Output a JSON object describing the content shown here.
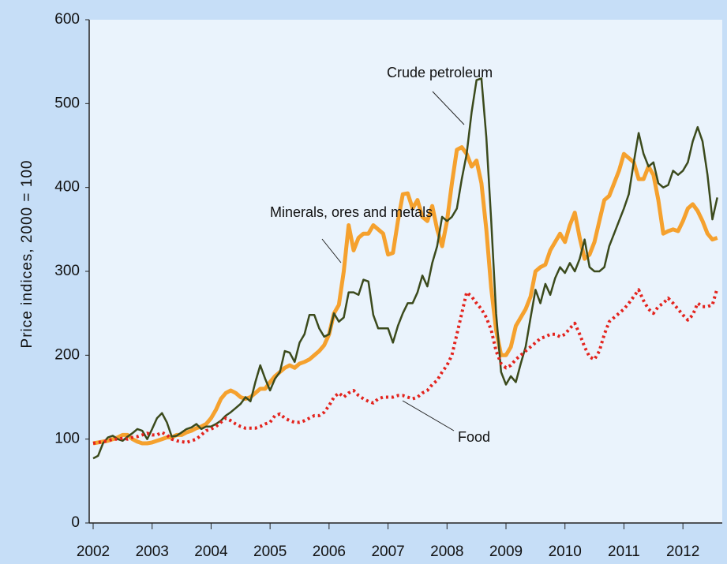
{
  "chart_data": {
    "type": "line",
    "y_label": "Price indices, 2000 = 100",
    "x": [
      2002,
      2002.083,
      2002.167,
      2002.25,
      2002.333,
      2002.417,
      2002.5,
      2002.583,
      2002.667,
      2002.75,
      2002.833,
      2002.917,
      2003,
      2003.083,
      2003.167,
      2003.25,
      2003.333,
      2003.417,
      2003.5,
      2003.583,
      2003.667,
      2003.75,
      2003.833,
      2003.917,
      2004,
      2004.083,
      2004.167,
      2004.25,
      2004.333,
      2004.417,
      2004.5,
      2004.583,
      2004.667,
      2004.75,
      2004.833,
      2004.917,
      2005,
      2005.083,
      2005.167,
      2005.25,
      2005.333,
      2005.417,
      2005.5,
      2005.583,
      2005.667,
      2005.75,
      2005.833,
      2005.917,
      2006,
      2006.083,
      2006.167,
      2006.25,
      2006.333,
      2006.417,
      2006.5,
      2006.583,
      2006.667,
      2006.75,
      2006.833,
      2006.917,
      2007,
      2007.083,
      2007.167,
      2007.25,
      2007.333,
      2007.417,
      2007.5,
      2007.583,
      2007.667,
      2007.75,
      2007.833,
      2007.917,
      2008,
      2008.083,
      2008.167,
      2008.25,
      2008.333,
      2008.417,
      2008.5,
      2008.583,
      2008.667,
      2008.75,
      2008.833,
      2008.917,
      2009,
      2009.083,
      2009.167,
      2009.25,
      2009.333,
      2009.417,
      2009.5,
      2009.583,
      2009.667,
      2009.75,
      2009.833,
      2009.917,
      2010,
      2010.083,
      2010.167,
      2010.25,
      2010.333,
      2010.417,
      2010.5,
      2010.583,
      2010.667,
      2010.75,
      2010.833,
      2010.917,
      2011,
      2011.083,
      2011.167,
      2011.25,
      2011.333,
      2011.417,
      2011.5,
      2011.583,
      2011.667,
      2011.75,
      2011.833,
      2011.917,
      2012,
      2012.083,
      2012.167,
      2012.25,
      2012.333,
      2012.417,
      2012.5,
      2012.583
    ],
    "series": [
      {
        "name": "Minerals, ores and metals",
        "color": "#f5a12e",
        "linestyle": "solid",
        "width": 5,
        "values": [
          95,
          96,
          97,
          98,
          100,
          102,
          105,
          105,
          100,
          97,
          95,
          95,
          96,
          98,
          100,
          102,
          102,
          105,
          105,
          108,
          110,
          113,
          115,
          118,
          125,
          135,
          148,
          155,
          158,
          155,
          150,
          148,
          150,
          155,
          160,
          160,
          168,
          175,
          180,
          185,
          188,
          185,
          190,
          192,
          195,
          200,
          205,
          212,
          225,
          250,
          260,
          300,
          355,
          325,
          340,
          345,
          345,
          355,
          350,
          345,
          320,
          322,
          360,
          392,
          393,
          375,
          385,
          365,
          360,
          378,
          350,
          330,
          360,
          405,
          445,
          448,
          440,
          425,
          432,
          405,
          350,
          280,
          230,
          200,
          200,
          210,
          235,
          245,
          255,
          270,
          300,
          305,
          308,
          325,
          335,
          345,
          335,
          355,
          370,
          340,
          315,
          320,
          335,
          360,
          385,
          390,
          405,
          420,
          440,
          435,
          430,
          410,
          410,
          425,
          415,
          385,
          345,
          348,
          350,
          348,
          360,
          375,
          380,
          372,
          360,
          345,
          338,
          340
        ]
      },
      {
        "name": "Crude petroleum",
        "color": "#3b4a1c",
        "linestyle": "solid",
        "width": 2.5,
        "values": [
          77,
          80,
          95,
          102,
          104,
          100,
          98,
          103,
          107,
          112,
          110,
          100,
          112,
          125,
          131,
          120,
          103,
          104,
          108,
          112,
          114,
          118,
          112,
          115,
          115,
          118,
          122,
          128,
          132,
          137,
          142,
          150,
          145,
          168,
          188,
          172,
          158,
          172,
          180,
          205,
          203,
          192,
          215,
          225,
          248,
          248,
          232,
          222,
          225,
          250,
          240,
          245,
          275,
          275,
          272,
          290,
          288,
          248,
          232,
          232,
          232,
          215,
          235,
          250,
          262,
          262,
          275,
          295,
          282,
          310,
          330,
          365,
          360,
          365,
          375,
          410,
          440,
          490,
          528,
          530,
          460,
          360,
          250,
          180,
          165,
          175,
          168,
          190,
          210,
          245,
          278,
          262,
          285,
          272,
          292,
          305,
          298,
          310,
          300,
          315,
          338,
          305,
          300,
          300,
          305,
          330,
          345,
          360,
          375,
          392,
          430,
          465,
          440,
          425,
          430,
          405,
          400,
          403,
          420,
          415,
          420,
          430,
          455,
          472,
          455,
          415,
          362,
          388
        ]
      },
      {
        "name": "Food",
        "color": "#e3231d",
        "linestyle": "dotted",
        "width": 4,
        "values": [
          95,
          96,
          97,
          98,
          100,
          100,
          101,
          100,
          102,
          103,
          105,
          107,
          105,
          105,
          108,
          105,
          100,
          98,
          97,
          96,
          98,
          100,
          105,
          110,
          112,
          115,
          120,
          125,
          122,
          118,
          115,
          113,
          113,
          113,
          115,
          118,
          120,
          128,
          130,
          125,
          122,
          120,
          120,
          122,
          125,
          128,
          128,
          132,
          140,
          150,
          155,
          150,
          155,
          158,
          152,
          148,
          145,
          143,
          148,
          150,
          150,
          150,
          152,
          152,
          150,
          148,
          150,
          155,
          158,
          165,
          170,
          180,
          188,
          200,
          225,
          250,
          275,
          270,
          262,
          255,
          245,
          230,
          205,
          190,
          185,
          188,
          195,
          200,
          205,
          210,
          215,
          220,
          222,
          225,
          225,
          222,
          225,
          232,
          238,
          225,
          210,
          198,
          195,
          205,
          225,
          240,
          245,
          250,
          255,
          262,
          270,
          278,
          265,
          255,
          250,
          258,
          262,
          268,
          262,
          255,
          248,
          242,
          248,
          262,
          258,
          258,
          260,
          280
        ]
      }
    ],
    "xlim": [
      2002,
      2012.667
    ],
    "xticks": [
      2002,
      2003,
      2004,
      2005,
      2006,
      2007,
      2008,
      2009,
      2010,
      2011,
      2012
    ],
    "ylim": [
      0,
      600
    ],
    "yticks": [
      0,
      100,
      200,
      300,
      400,
      500,
      600
    ],
    "grid": false
  }
}
